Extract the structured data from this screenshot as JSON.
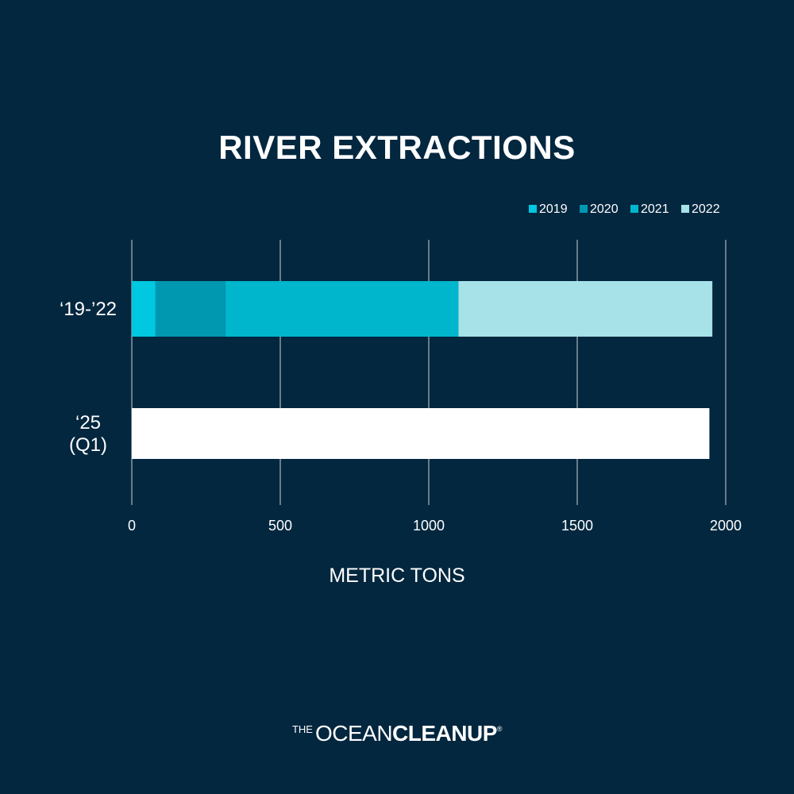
{
  "chart_data": {
    "type": "bar",
    "orientation": "horizontal",
    "stacked": true,
    "title": "RIVER EXTRACTIONS",
    "xlabel": "METRIC TONS",
    "ylabel": "",
    "xlim": [
      0,
      2000
    ],
    "xticks": [
      0,
      500,
      1000,
      1500,
      2000
    ],
    "grid": true,
    "legend_position": "top-right",
    "categories": [
      "‘19-’22",
      "‘25\n(Q1)"
    ],
    "series": [
      {
        "name": "2019",
        "color": "#00c8e0",
        "values": [
          80,
          null
        ]
      },
      {
        "name": "2020",
        "color": "#0097b0",
        "values": [
          235,
          null
        ]
      },
      {
        "name": "2021",
        "color": "#00b6cc",
        "values": [
          785,
          null
        ]
      },
      {
        "name": "2022",
        "color": "#a6e2e8",
        "values": [
          855,
          null
        ]
      },
      {
        "name": "",
        "color": "#ffffff",
        "values": [
          null,
          1945
        ]
      }
    ]
  },
  "logo": {
    "the": "THE",
    "ocean": "OCEAN",
    "cleanup": "CLEANUP",
    "reg": "®"
  }
}
